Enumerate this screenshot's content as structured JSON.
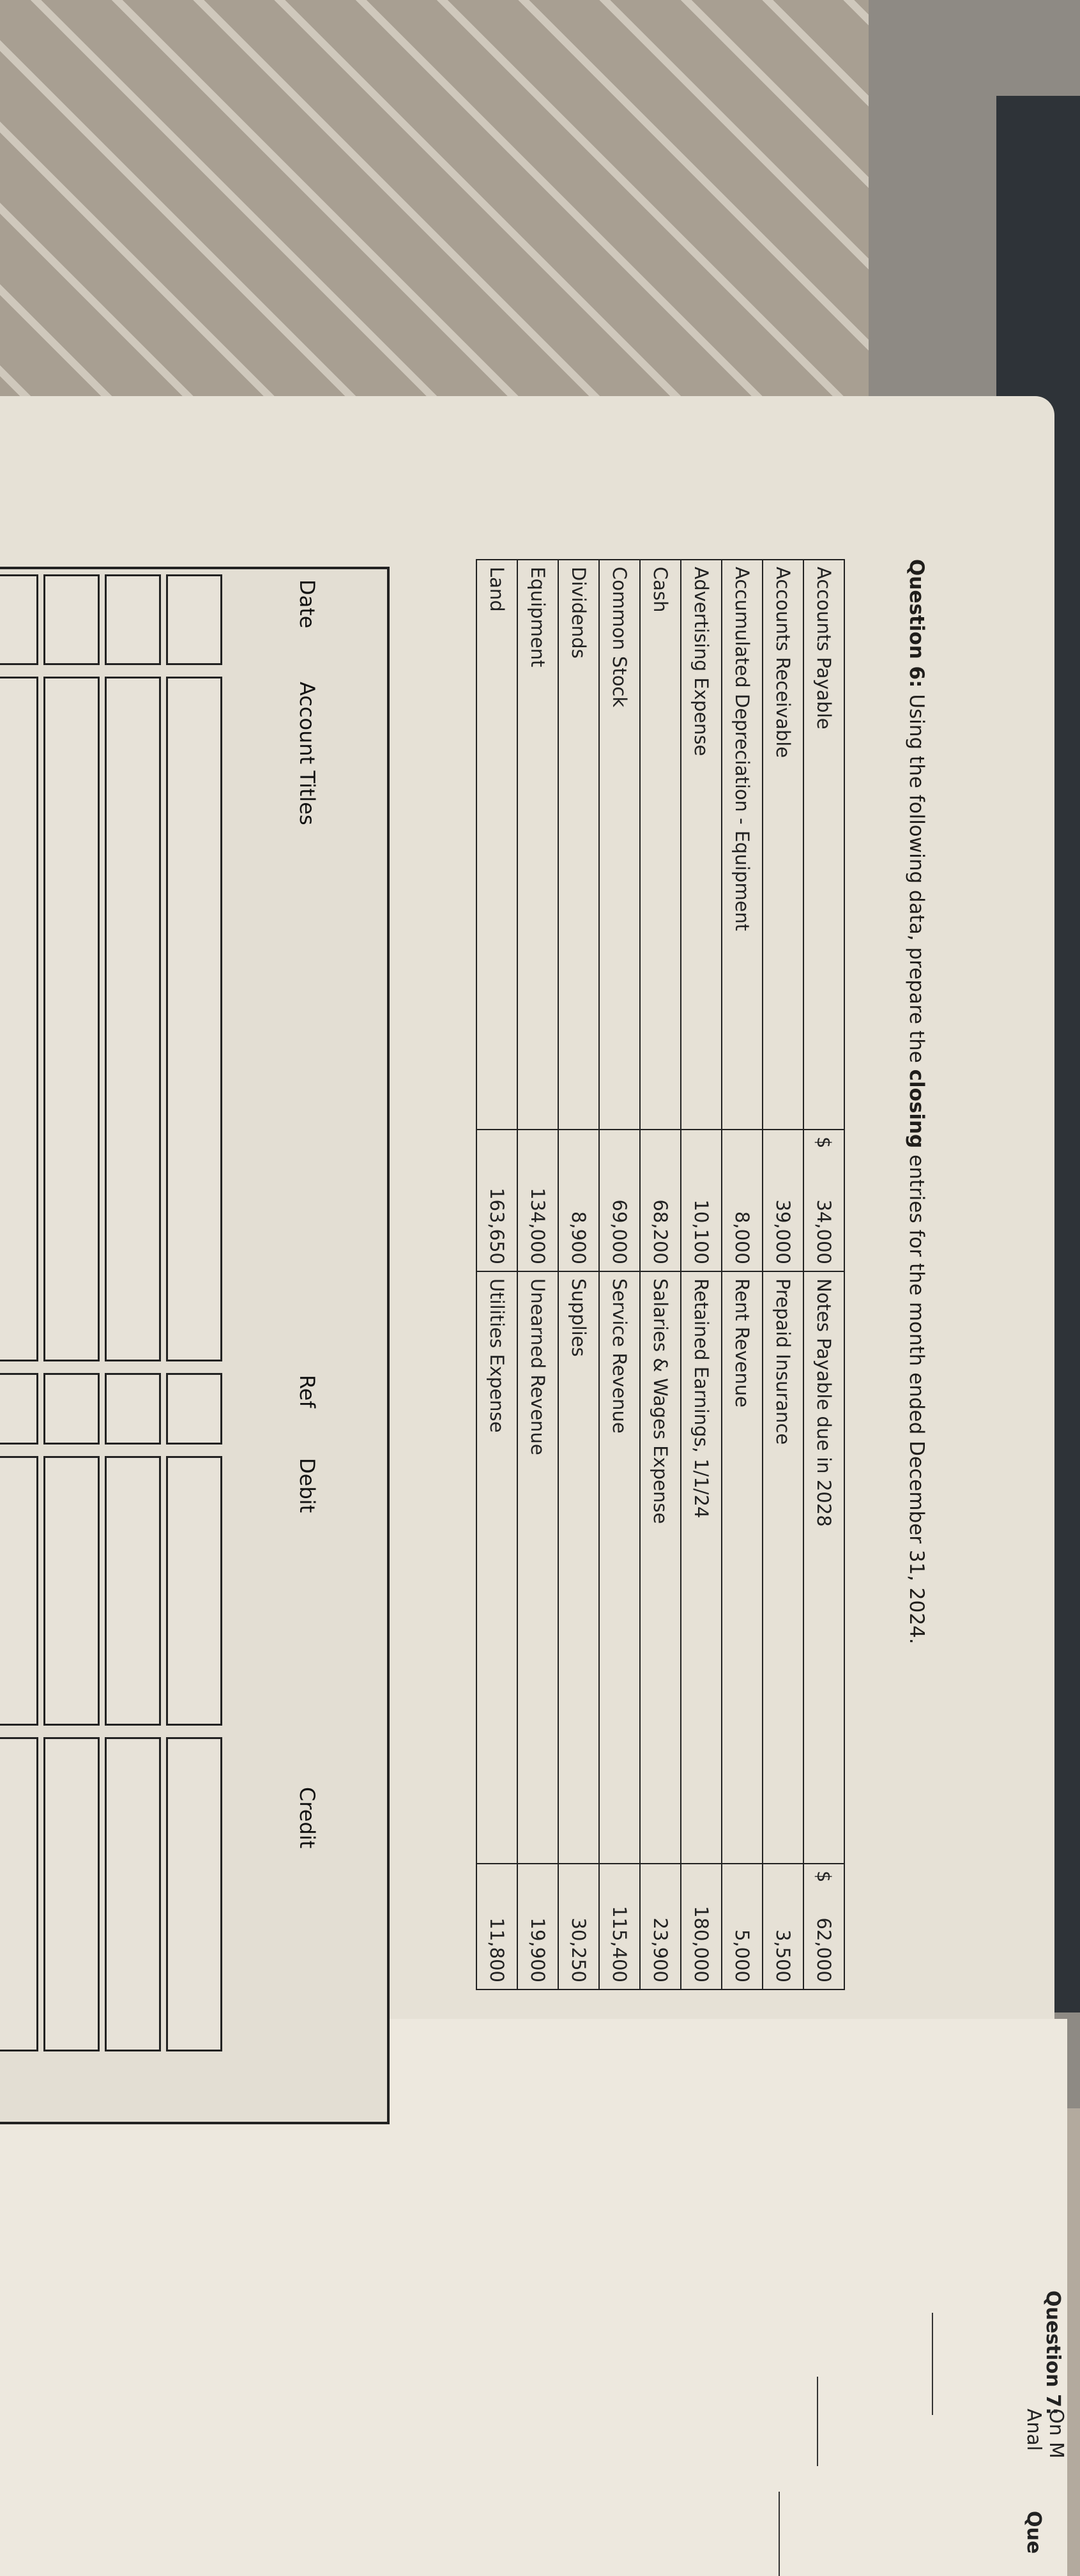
{
  "question6": {
    "prefix": "Question 6:",
    "text_before": "Using the following data, prepare the",
    "bold_word": "closing",
    "text_after": "entries for the month ended December 31, 2024."
  },
  "accounts_left": [
    {
      "name": "Accounts Payable",
      "currency": "$",
      "amount": "34,000"
    },
    {
      "name": "Accounts Receivable",
      "currency": "",
      "amount": "39,000"
    },
    {
      "name": "Accumulated Depreciation - Equipment",
      "currency": "",
      "amount": "8,000"
    },
    {
      "name": "Advertising Expense",
      "currency": "",
      "amount": "10,100"
    },
    {
      "name": "Cash",
      "currency": "",
      "amount": "68,200"
    },
    {
      "name": "Common Stock",
      "currency": "",
      "amount": "69,000"
    },
    {
      "name": "Dividends",
      "currency": "",
      "amount": "8,900"
    },
    {
      "name": "Equipment",
      "currency": "",
      "amount": "134,000"
    },
    {
      "name": "Land",
      "currency": "",
      "amount": "163,650"
    }
  ],
  "accounts_right": [
    {
      "name": "Notes Payable due in 2028",
      "currency": "$",
      "amount": "62,000"
    },
    {
      "name": "Prepaid Insurance",
      "currency": "",
      "amount": "3,500"
    },
    {
      "name": "Rent Revenue",
      "currency": "",
      "amount": "5,000"
    },
    {
      "name": "Retained Earnings, 1/1/24",
      "currency": "",
      "amount": "180,000"
    },
    {
      "name": "Salaries & Wages Expense",
      "currency": "",
      "amount": "23,900"
    },
    {
      "name": "Service Revenue",
      "currency": "",
      "amount": "115,400"
    },
    {
      "name": "Supplies",
      "currency": "",
      "amount": "30,250"
    },
    {
      "name": "Unearned Revenue",
      "currency": "",
      "amount": "19,900"
    },
    {
      "name": "Utilities Expense",
      "currency": "",
      "amount": "11,800"
    }
  ],
  "journal": {
    "headers": {
      "date": "Date",
      "account_titles": "Account Titles",
      "ref": "Ref",
      "debit": "Debit",
      "credit": "Credit"
    }
  },
  "next_page": {
    "question7_label": "Question 7:",
    "line1": "On M",
    "line2": "Anal",
    "next_question": "Que"
  }
}
